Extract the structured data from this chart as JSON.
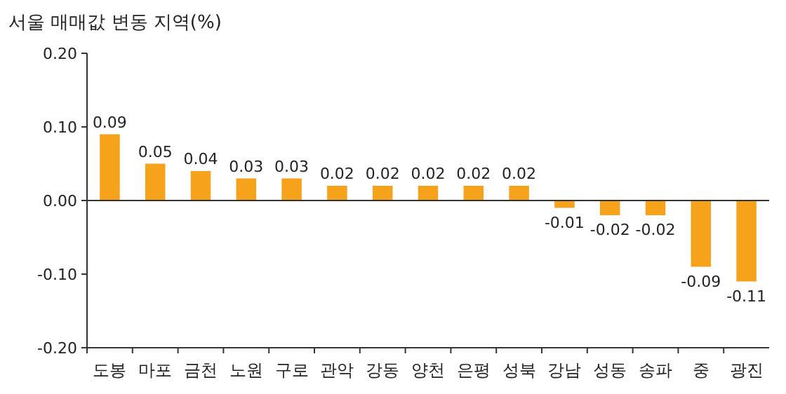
{
  "chart_data": {
    "type": "bar",
    "title": "서울 매매값 변동 지역(%)",
    "categories": [
      "도봉",
      "마포",
      "금천",
      "노원",
      "구로",
      "관악",
      "강동",
      "양천",
      "은평",
      "성북",
      "강남",
      "성동",
      "송파",
      "중",
      "광진"
    ],
    "values": [
      0.09,
      0.05,
      0.04,
      0.03,
      0.03,
      0.02,
      0.02,
      0.02,
      0.02,
      0.02,
      -0.01,
      -0.02,
      -0.02,
      -0.09,
      -0.11
    ],
    "value_labels": [
      "0.09",
      "0.05",
      "0.04",
      "0.03",
      "0.03",
      "0.02",
      "0.02",
      "0.02",
      "0.02",
      "0.02",
      "-0.01",
      "-0.02",
      "-0.02",
      "-0.09",
      "-0.11"
    ],
    "color": "#f7a21b",
    "ylim": [
      -0.2,
      0.2
    ],
    "yticks": [
      {
        "value": 0.2,
        "label": "0.20"
      },
      {
        "value": 0.1,
        "label": "0.10"
      },
      {
        "value": 0,
        "label": "0.00"
      },
      {
        "value": -0.1,
        "label": "-0.10"
      },
      {
        "value": -0.2,
        "label": "-0.20"
      }
    ]
  }
}
